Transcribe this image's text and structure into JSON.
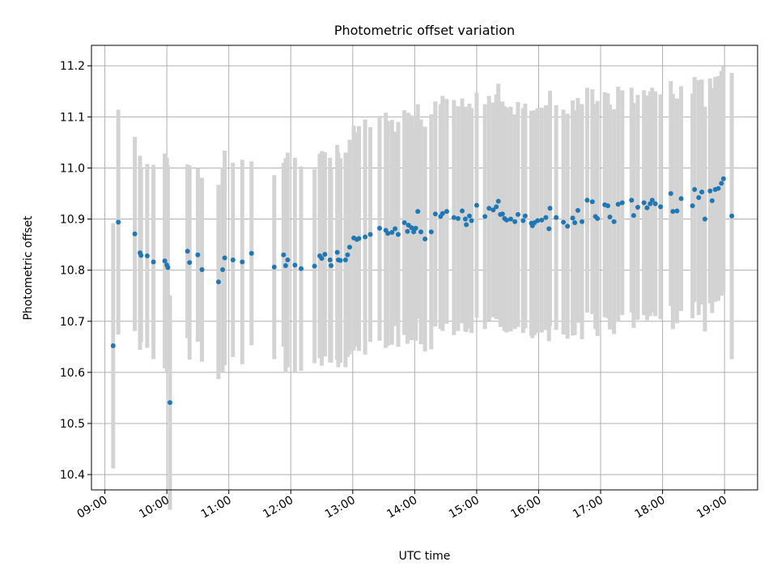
{
  "chart_data": {
    "type": "scatter",
    "title": "Photometric offset variation",
    "xlabel": "UTC time",
    "ylabel": "Photometric offset",
    "x_ticks": [
      "09:00",
      "10:00",
      "11:00",
      "12:00",
      "13:00",
      "14:00",
      "15:00",
      "16:00",
      "17:00",
      "18:00",
      "19:00"
    ],
    "y_ticks": [
      "10.4",
      "10.5",
      "10.6",
      "10.7",
      "10.8",
      "10.9",
      "11.0",
      "11.1",
      "11.2"
    ],
    "xlim": [
      "08:47",
      "19:32"
    ],
    "ylim": [
      10.37,
      11.24
    ],
    "grid": true,
    "colors": {
      "points": "#1f77b4",
      "error_bars": "#d3d3d3",
      "grid": "#b0b0b0"
    },
    "series": [
      {
        "x": [
          "09:08",
          "09:13",
          "09:29",
          "09:34",
          "09:35",
          "09:41",
          "09:47",
          "09:58",
          "10:00",
          "10:01",
          "10:03",
          "10:20",
          "10:22",
          "10:30",
          "10:34",
          "10:50",
          "10:54",
          "10:56",
          "11:04",
          "11:13",
          "11:22",
          "11:44",
          "11:53",
          "11:55",
          "11:57",
          "12:04",
          "12:10",
          "12:23",
          "12:28",
          "12:30",
          "12:33",
          "12:38",
          "12:39",
          "12:45",
          "12:46",
          "12:48",
          "12:53",
          "12:55",
          "12:57",
          "13:01",
          "13:04",
          "13:06",
          "13:12",
          "13:17",
          "13:26",
          "13:32",
          "13:34",
          "13:38",
          "13:41",
          "13:44",
          "13:50",
          "13:53",
          "13:54",
          "13:57",
          "13:59",
          "14:01",
          "14:03",
          "14:06",
          "14:10",
          "14:16",
          "14:20",
          "14:25",
          "14:27",
          "14:31",
          "14:38",
          "14:42",
          "14:46",
          "14:49",
          "14:50",
          "14:53",
          "14:55",
          "15:00",
          "15:08",
          "15:12",
          "15:16",
          "15:19",
          "15:21",
          "15:23",
          "15:25",
          "15:27",
          "15:29",
          "15:33",
          "15:37",
          "15:40",
          "15:45",
          "15:47",
          "15:53",
          "15:54",
          "15:56",
          "15:59",
          "16:03",
          "16:07",
          "16:10",
          "16:11",
          "16:17",
          "16:24",
          "16:28",
          "16:33",
          "16:35",
          "16:38",
          "16:42",
          "16:47",
          "16:52",
          "16:55",
          "16:57",
          "17:04",
          "17:07",
          "17:09",
          "17:13",
          "17:17",
          "17:21",
          "17:30",
          "17:32",
          "17:36",
          "17:42",
          "17:45",
          "17:48",
          "17:50",
          "17:53",
          "17:58",
          "18:08",
          "18:10",
          "18:14",
          "18:18",
          "18:29",
          "18:31",
          "18:35",
          "18:38",
          "18:41",
          "18:46",
          "18:48",
          "18:51",
          "18:54",
          "18:57",
          "18:59",
          "19:07"
        ],
        "y": [
          10.652,
          10.894,
          10.871,
          10.834,
          10.829,
          10.828,
          10.816,
          10.818,
          10.81,
          10.805,
          10.541,
          10.837,
          10.815,
          10.83,
          10.801,
          10.777,
          10.801,
          10.824,
          10.82,
          10.816,
          10.833,
          10.806,
          10.83,
          10.809,
          10.82,
          10.81,
          10.803,
          10.808,
          10.828,
          10.823,
          10.831,
          10.82,
          10.809,
          10.835,
          10.82,
          10.819,
          10.82,
          10.83,
          10.845,
          10.863,
          10.86,
          10.862,
          10.865,
          10.87,
          10.882,
          10.878,
          10.872,
          10.874,
          10.881,
          10.87,
          10.893,
          10.876,
          10.888,
          10.883,
          10.875,
          10.882,
          10.915,
          10.875,
          10.861,
          10.875,
          10.91,
          10.905,
          10.911,
          10.915,
          10.903,
          10.901,
          10.916,
          10.9,
          10.889,
          10.906,
          10.897,
          10.927,
          10.905,
          10.921,
          10.918,
          10.924,
          10.935,
          10.909,
          10.91,
          10.901,
          10.898,
          10.9,
          10.895,
          10.909,
          10.897,
          10.906,
          10.892,
          10.887,
          10.893,
          10.897,
          10.898,
          10.903,
          10.881,
          10.921,
          10.903,
          10.894,
          10.886,
          10.902,
          10.893,
          10.917,
          10.895,
          10.937,
          10.934,
          10.905,
          10.901,
          10.928,
          10.926,
          10.904,
          10.895,
          10.929,
          10.932,
          10.937,
          10.907,
          10.923,
          10.932,
          10.922,
          10.93,
          10.937,
          10.93,
          10.924,
          10.95,
          10.915,
          10.916,
          10.94,
          10.926,
          10.958,
          10.942,
          10.953,
          10.9,
          10.955,
          10.936,
          10.958,
          10.96,
          10.97,
          10.979,
          10.906
        ],
        "error": [
          0.24,
          0.22,
          0.19,
          0.19,
          0.17,
          0.18,
          0.19,
          0.21,
          0.21,
          0.2,
          0.21,
          0.17,
          0.19,
          0.17,
          0.18,
          0.19,
          0.2,
          0.21,
          0.19,
          0.2,
          0.18,
          0.18,
          0.18,
          0.21,
          0.21,
          0.21,
          0.2,
          0.19,
          0.2,
          0.21,
          0.2,
          0.2,
          0.19,
          0.21,
          0.21,
          0.2,
          0.21,
          0.2,
          0.21,
          0.22,
          0.21,
          0.22,
          0.23,
          0.21,
          0.22,
          0.23,
          0.22,
          0.22,
          0.19,
          0.22,
          0.22,
          0.22,
          0.22,
          0.22,
          0.2,
          0.22,
          0.21,
          0.22,
          0.22,
          0.23,
          0.22,
          0.22,
          0.23,
          0.22,
          0.23,
          0.22,
          0.22,
          0.22,
          0.21,
          0.22,
          0.22,
          0.22,
          0.22,
          0.22,
          0.21,
          0.22,
          0.23,
          0.22,
          0.22,
          0.22,
          0.22,
          0.22,
          0.21,
          0.22,
          0.22,
          0.22,
          0.22,
          0.22,
          0.22,
          0.22,
          0.22,
          0.22,
          0.22,
          0.23,
          0.22,
          0.22,
          0.22,
          0.23,
          0.22,
          0.22,
          0.23,
          0.22,
          0.22,
          0.22,
          0.23,
          0.22,
          0.22,
          0.22,
          0.22,
          0.23,
          0.22,
          0.22,
          0.22,
          0.22,
          0.22,
          0.22,
          0.22,
          0.22,
          0.22,
          0.22,
          0.22,
          0.23,
          0.22,
          0.22,
          0.22,
          0.22,
          0.23,
          0.22,
          0.22,
          0.22,
          0.22,
          0.22,
          0.22,
          0.22,
          0.22,
          0.28
        ]
      }
    ]
  }
}
